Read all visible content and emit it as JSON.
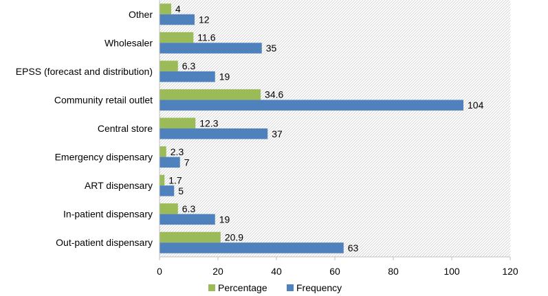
{
  "chart_data": {
    "type": "bar",
    "orientation": "horizontal",
    "categories": [
      "Other",
      "Wholesaler",
      "EPSS (forecast and distribution)",
      "Community retail outlet",
      "Central store",
      "Emergency dispensary",
      "ART dispensary",
      "In-patient  dispensary",
      "Out-patient dispensary"
    ],
    "series": [
      {
        "name": "Percentage",
        "color": "#9BBB59",
        "values": [
          4,
          11.6,
          6.3,
          34.6,
          12.3,
          2.3,
          1.7,
          6.3,
          20.9
        ],
        "labels": [
          "4",
          "11.6",
          "6.3",
          "34.6",
          "12.3",
          "2.3",
          "1.7",
          "6.3",
          "20.9"
        ]
      },
      {
        "name": "Frequency",
        "color": "#4F81BD",
        "values": [
          12,
          35,
          19,
          104,
          37,
          7,
          5,
          19,
          63
        ],
        "labels": [
          "12",
          "35",
          "19",
          "104",
          "37",
          "7",
          "5",
          "19",
          "63"
        ]
      }
    ],
    "xlim": [
      0,
      120
    ],
    "xticks": [
      "0",
      "20",
      "40",
      "60",
      "80",
      "100",
      "120"
    ],
    "title": "",
    "xlabel": "",
    "ylabel": "",
    "grid": false,
    "legend_position": "bottom",
    "plot_background": "diagonal hatch"
  }
}
